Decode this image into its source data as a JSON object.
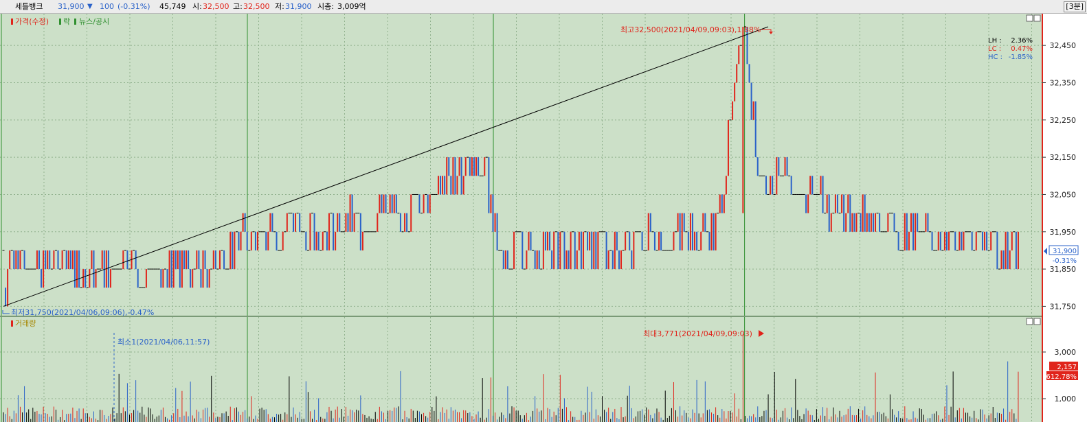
{
  "header": {
    "stock_name": "세틀뱅크",
    "price": "31,900",
    "change_arrow": "▼",
    "change": "100",
    "change_pct": "(-0.31%)",
    "volume": "45,749",
    "open_label": "시:",
    "open": "32,500",
    "high_label": "고:",
    "high": "32,500",
    "low_label": "저:",
    "low": "31,900",
    "mcap_label": "시총:",
    "mcap": "3,009억",
    "timeframe": "[3분]"
  },
  "colors": {
    "background": "#cce0c8",
    "grid": "#8fb08c",
    "up": "#e0241b",
    "down": "#2a62c9",
    "neutral": "#000000",
    "day_separator": "#2f8f2f",
    "axis_bg": "#ffffff"
  },
  "price_panel": {
    "legend_price": "가격(수정)",
    "legend_fall": "락",
    "legend_news": "뉴스/공시",
    "high_annotation": "최고32,500(2021/04/09,09:03),1.88%",
    "low_annotation": "최저31,750(2021/04/06,09:06),-0.47%",
    "stats": [
      {
        "label": "LH :",
        "value": "2.36%",
        "color": "#000000"
      },
      {
        "label": "LC :",
        "value": "0.47%",
        "color": "#e0241b"
      },
      {
        "label": "HC :",
        "value": "-1.85%",
        "color": "#2a62c9"
      }
    ],
    "current_price_tag": "31,900",
    "current_pct_tag": "-0.31%"
  },
  "volume_panel": {
    "legend": "거래량",
    "min_annotation": "최소1(2021/04/06,11:57)",
    "max_annotation": "최대3,771(2021/04/09,09:03)",
    "current_volume_tag": "2,157",
    "current_pct_tag": "612.78%"
  },
  "chart_data": [
    {
      "type": "candlestick",
      "title": "세틀뱅크 3분",
      "y_ticks": [
        "32,450",
        "32,350",
        "32,250",
        "32,150",
        "32,050",
        "31,950",
        "31,850",
        "31,750"
      ],
      "y_tick_values": [
        32450,
        32350,
        32250,
        32150,
        32050,
        31950,
        31850,
        31750
      ],
      "ylim": [
        31725,
        32535
      ],
      "grid": true,
      "day_separators_at": [
        0.236,
        0.472,
        0.713
      ],
      "trendline": {
        "from": {
          "value": 31750,
          "label": "2021/04/06,09:06"
        },
        "to": {
          "value": 32500,
          "label": "2021/04/09,09:03"
        }
      },
      "high": {
        "value": 32500,
        "time": "2021/04/09,09:03",
        "pct": 1.88
      },
      "low": {
        "value": 31750,
        "time": "2021/04/06,09:06",
        "pct": -0.47
      },
      "last": 31900
    },
    {
      "type": "bar",
      "title": "거래량",
      "y_ticks": [
        "3,000",
        "1,000"
      ],
      "y_tick_values": [
        3000,
        1000
      ],
      "ylim": [
        0,
        4500
      ],
      "max": {
        "value": 3771,
        "time": "2021/04/09,09:03"
      },
      "min": {
        "value": 1,
        "time": "2021/04/06,11:57"
      },
      "last": 2157
    }
  ]
}
